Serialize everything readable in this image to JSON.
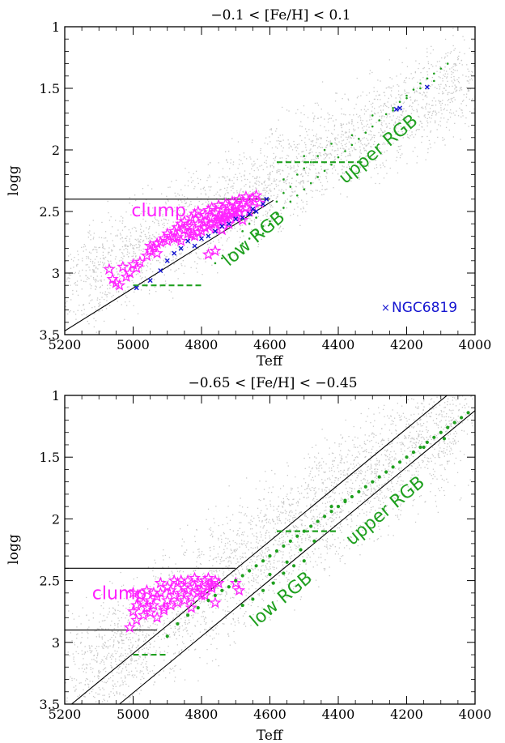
{
  "colors": {
    "background_stars": "#c8c8c8",
    "clump": "#ff22ff",
    "rgb": "#1fa01f",
    "ngc": "#1414d0",
    "frame": "#000000"
  },
  "chart_data": [
    {
      "type": "scatter",
      "title": "−0.1 < [Fe/H] < 0.1",
      "xlabel": "Teff",
      "ylabel": "logg",
      "xlim": [
        5200,
        4000
      ],
      "ylim": [
        3.5,
        1
      ],
      "x_ticks": [
        5200,
        5000,
        4800,
        4600,
        4400,
        4200,
        4000
      ],
      "y_ticks": [
        1,
        1.5,
        2,
        2.5,
        3,
        3.5
      ],
      "grid": false,
      "legend": {
        "position": "bottom-right",
        "entries": [
          "NGC6819"
        ]
      },
      "annotations": [
        {
          "text": "clump",
          "color": "clump",
          "x": 5005,
          "y": 2.54,
          "rotate": 0,
          "size": 22
        },
        {
          "text": "low RGB",
          "color": "rgb",
          "x": 4720,
          "y": 2.95,
          "rotate": -40,
          "size": 22
        },
        {
          "text": "upper RGB",
          "color": "rgb",
          "x": 4380,
          "y": 2.28,
          "rotate": -40,
          "size": 22
        }
      ],
      "lines": [
        {
          "color": "#000",
          "dash": false,
          "points": [
            [
              5200,
              2.4
            ],
            [
              4600,
              2.4
            ]
          ]
        },
        {
          "color": "#000",
          "dash": false,
          "points": [
            [
              5200,
              3.47
            ],
            [
              4590,
              2.41
            ]
          ]
        },
        {
          "color": "rgb",
          "dash": true,
          "points": [
            [
              4580,
              2.1
            ],
            [
              4330,
              2.1
            ]
          ]
        },
        {
          "color": "rgb",
          "dash": true,
          "points": [
            [
              5000,
              3.1
            ],
            [
              4800,
              3.1
            ]
          ]
        }
      ],
      "background_band": {
        "x_start": 5180,
        "x_end": 4020,
        "y_start": 3.1,
        "y_end": 1.4,
        "width": 0.38,
        "count": 2600,
        "seed": 7
      },
      "series": [
        {
          "name": "clump",
          "marker": "star",
          "color": "clump",
          "x": [
            5070,
            5060,
            5040,
            5030,
            5020,
            5050,
            5010,
            5000,
            4990,
            4980,
            4960,
            4950,
            4940,
            4930,
            4920,
            4910,
            4900,
            4890,
            4880,
            4870,
            4860,
            4850,
            4840,
            4830,
            4820,
            4810,
            4800,
            4790,
            4780,
            4770,
            4760,
            4750,
            4740,
            4730,
            4720,
            4710,
            4700,
            4690,
            4680,
            4670,
            4660,
            4650,
            4640,
            4630,
            4880,
            4860,
            4840,
            4820,
            4800,
            4780,
            4760,
            4740,
            4720,
            4700,
            4680,
            4660,
            4850,
            4830,
            4810,
            4790,
            4770,
            4750,
            4730,
            4710,
            4690,
            4670,
            4650,
            4790,
            4770,
            4750,
            4730,
            4710,
            4690,
            4830,
            4810,
            4760,
            4740,
            4720,
            4700,
            4950,
            4930,
            4900,
            4870,
            4780,
            4760,
            4740,
            4720
          ],
          "y": [
            2.97,
            3.05,
            3.1,
            2.95,
            3.03,
            3.08,
            3.0,
            2.93,
            2.96,
            2.91,
            2.86,
            2.82,
            2.79,
            2.84,
            2.75,
            2.72,
            2.68,
            2.7,
            2.66,
            2.63,
            2.6,
            2.58,
            2.62,
            2.55,
            2.52,
            2.5,
            2.56,
            2.53,
            2.49,
            2.47,
            2.51,
            2.45,
            2.48,
            2.44,
            2.46,
            2.42,
            2.45,
            2.4,
            2.43,
            2.38,
            2.41,
            2.39,
            2.37,
            2.43,
            2.72,
            2.74,
            2.68,
            2.7,
            2.66,
            2.62,
            2.64,
            2.58,
            2.6,
            2.55,
            2.57,
            2.5,
            2.65,
            2.62,
            2.6,
            2.58,
            2.55,
            2.54,
            2.52,
            2.5,
            2.48,
            2.47,
            2.46,
            2.63,
            2.6,
            2.57,
            2.55,
            2.52,
            2.51,
            2.69,
            2.67,
            2.59,
            2.56,
            2.53,
            2.5,
            2.78,
            2.76,
            2.74,
            2.71,
            2.85,
            2.82,
            2.65,
            2.6
          ]
        },
        {
          "name": "rgb",
          "marker": "dot",
          "color": "rgb",
          "x": [
            4760,
            4740,
            4720,
            4700,
            4680,
            4660,
            4640,
            4620,
            4600,
            4580,
            4560,
            4540,
            4520,
            4500,
            4480,
            4460,
            4440,
            4420,
            4400,
            4380,
            4360,
            4340,
            4320,
            4300,
            4280,
            4260,
            4240,
            4220,
            4200,
            4180,
            4160,
            4140,
            4120,
            4100,
            4080,
            4620,
            4600,
            4580,
            4560,
            4540,
            4520,
            4500,
            4480,
            4460,
            4440,
            4640,
            4660,
            4680,
            4560,
            4500,
            4420,
            4360,
            4300,
            4240,
            4200,
            4160,
            4120
          ],
          "y": [
            2.92,
            2.88,
            2.85,
            2.8,
            2.76,
            2.72,
            2.68,
            2.62,
            2.58,
            2.52,
            2.47,
            2.42,
            2.37,
            2.32,
            2.27,
            2.22,
            2.17,
            2.12,
            2.06,
            2.01,
            1.96,
            1.91,
            1.86,
            1.81,
            1.76,
            1.71,
            1.66,
            1.61,
            1.56,
            1.51,
            1.46,
            1.42,
            1.38,
            1.34,
            1.3,
            2.68,
            2.6,
            2.42,
            2.35,
            2.3,
            2.2,
            2.15,
            2.1,
            2.05,
            2.0,
            2.55,
            2.6,
            2.66,
            2.24,
            2.05,
            1.95,
            1.88,
            1.72,
            1.68,
            1.58,
            1.5,
            1.44
          ]
        },
        {
          "name": "NGC6819",
          "marker": "cross",
          "color": "ngc",
          "x": [
            4990,
            4950,
            4920,
            4900,
            4880,
            4860,
            4840,
            4820,
            4800,
            4780,
            4760,
            4740,
            4720,
            4700,
            4680,
            4660,
            4650,
            4640,
            4620,
            4610,
            4230,
            4220,
            4140
          ],
          "y": [
            3.12,
            3.06,
            2.98,
            2.9,
            2.84,
            2.8,
            2.74,
            2.78,
            2.72,
            2.7,
            2.66,
            2.62,
            2.6,
            2.56,
            2.55,
            2.52,
            2.48,
            2.5,
            2.44,
            2.4,
            1.67,
            1.66,
            1.49
          ]
        }
      ]
    },
    {
      "type": "scatter",
      "title": "−0.65 < [Fe/H] < −0.45",
      "xlabel": "Teff",
      "ylabel": "logg",
      "xlim": [
        5200,
        4000
      ],
      "ylim": [
        3.5,
        1
      ],
      "x_ticks": [
        5200,
        5000,
        4800,
        4600,
        4400,
        4200,
        4000
      ],
      "y_ticks": [
        1,
        1.5,
        2,
        2.5,
        3,
        3.5
      ],
      "grid": false,
      "annotations": [
        {
          "text": "clump",
          "color": "clump",
          "x": 5120,
          "y": 2.65,
          "rotate": 0,
          "size": 22
        },
        {
          "text": "low RGB",
          "color": "rgb",
          "x": 4640,
          "y": 2.88,
          "rotate": -40,
          "size": 22
        },
        {
          "text": "upper RGB",
          "color": "rgb",
          "x": 4360,
          "y": 2.22,
          "rotate": -40,
          "size": 22
        }
      ],
      "lines": [
        {
          "color": "#000",
          "dash": false,
          "points": [
            [
              5200,
              2.4
            ],
            [
              4700,
              2.4
            ]
          ]
        },
        {
          "color": "#000",
          "dash": false,
          "points": [
            [
              5200,
              2.9
            ],
            [
              4930,
              2.9
            ]
          ]
        },
        {
          "color": "#000",
          "dash": false,
          "points": [
            [
              5180,
              3.5
            ],
            [
              4060,
              0.95
            ]
          ]
        },
        {
          "color": "#000",
          "dash": false,
          "points": [
            [
              5040,
              3.5
            ],
            [
              3990,
              1.1
            ]
          ]
        },
        {
          "color": "rgb",
          "dash": true,
          "points": [
            [
              4580,
              2.1
            ],
            [
              4400,
              2.1
            ]
          ]
        },
        {
          "color": "rgb",
          "dash": true,
          "points": [
            [
              5000,
              3.1
            ],
            [
              4900,
              3.1
            ]
          ]
        }
      ],
      "background_band": {
        "x_start": 5170,
        "x_end": 4020,
        "y_start": 3.3,
        "y_end": 1.1,
        "width": 0.5,
        "count": 3200,
        "seed": 19
      },
      "series": [
        {
          "name": "clump",
          "marker": "star",
          "color": "clump",
          "x": [
            5000,
            4990,
            4980,
            4970,
            4960,
            4950,
            4940,
            4930,
            4920,
            4910,
            4900,
            4890,
            4880,
            4870,
            4860,
            4850,
            4840,
            4830,
            4820,
            4810,
            4800,
            4790,
            4780,
            4770,
            4760,
            4750,
            5010,
            4990,
            4970,
            4950,
            4930,
            4910,
            4890,
            4870,
            4850,
            4830,
            4810,
            4790,
            4770,
            4940,
            4900,
            4860,
            4820,
            4780,
            5000,
            4960,
            4920,
            4880,
            4840,
            4800,
            4760,
            4700,
            4690
          ],
          "y": [
            2.75,
            2.7,
            2.62,
            2.68,
            2.72,
            2.66,
            2.7,
            2.63,
            2.6,
            2.72,
            2.66,
            2.58,
            2.62,
            2.52,
            2.6,
            2.56,
            2.5,
            2.64,
            2.55,
            2.52,
            2.58,
            2.5,
            2.48,
            2.54,
            2.5,
            2.52,
            2.88,
            2.82,
            2.78,
            2.76,
            2.8,
            2.74,
            2.7,
            2.68,
            2.66,
            2.72,
            2.6,
            2.62,
            2.56,
            2.6,
            2.55,
            2.5,
            2.48,
            2.55,
            2.6,
            2.58,
            2.52,
            2.5,
            2.58,
            2.62,
            2.68,
            2.52,
            2.58
          ]
        },
        {
          "name": "rgb",
          "marker": "dot",
          "color": "rgb",
          "x": [
            4900,
            4870,
            4840,
            4810,
            4780,
            4760,
            4740,
            4720,
            4700,
            4680,
            4660,
            4640,
            4620,
            4600,
            4580,
            4560,
            4540,
            4520,
            4500,
            4480,
            4460,
            4440,
            4420,
            4400,
            4380,
            4360,
            4340,
            4320,
            4300,
            4280,
            4260,
            4240,
            4220,
            4200,
            4180,
            4160,
            4140,
            4120,
            4100,
            4080,
            4060,
            4040,
            4020,
            4680,
            4650,
            4620,
            4590,
            4560,
            4530,
            4500,
            4600,
            4550,
            4510,
            4470,
            4420,
            4380,
            4150,
            4090
          ],
          "y": [
            2.95,
            2.85,
            2.78,
            2.72,
            2.66,
            2.62,
            2.58,
            2.55,
            2.5,
            2.46,
            2.42,
            2.38,
            2.34,
            2.3,
            2.26,
            2.22,
            2.18,
            2.14,
            2.1,
            2.06,
            2.02,
            1.98,
            1.94,
            1.9,
            1.86,
            1.82,
            1.78,
            1.74,
            1.7,
            1.66,
            1.62,
            1.58,
            1.54,
            1.5,
            1.46,
            1.42,
            1.38,
            1.34,
            1.3,
            1.26,
            1.22,
            1.18,
            1.14,
            2.7,
            2.65,
            2.58,
            2.52,
            2.44,
            2.38,
            2.34,
            2.45,
            2.35,
            2.25,
            2.18,
            1.9,
            1.85,
            1.42,
            1.35
          ]
        }
      ]
    }
  ]
}
